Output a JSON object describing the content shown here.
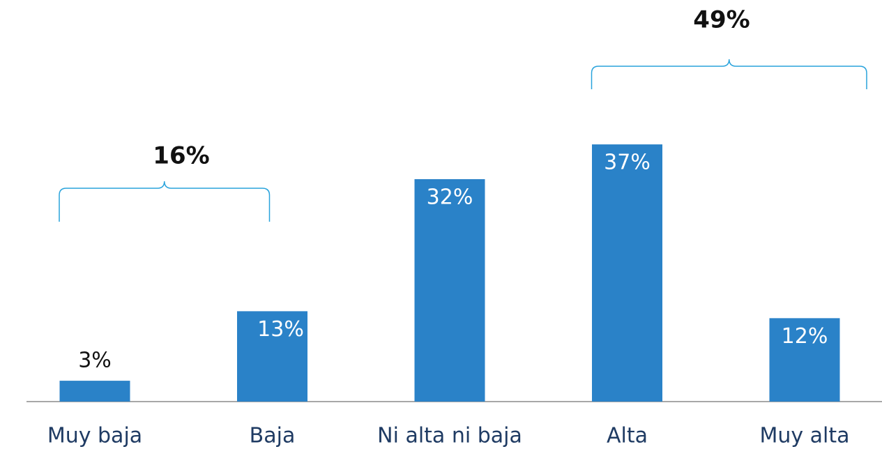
{
  "chart_data": {
    "type": "bar",
    "categories": [
      "Muy baja",
      "Baja",
      "Ni alta ni baja",
      "Alta",
      "Muy alta"
    ],
    "values": [
      3,
      13,
      32,
      37,
      12
    ],
    "value_labels": [
      "3%",
      "13%",
      "32%",
      "37%",
      "12%"
    ],
    "color": "#2a82c8",
    "groups": [
      {
        "label": "16%",
        "value": 16,
        "members": [
          0,
          1
        ]
      },
      {
        "label": "49%",
        "value": 49,
        "members": [
          3,
          4
        ]
      }
    ]
  }
}
